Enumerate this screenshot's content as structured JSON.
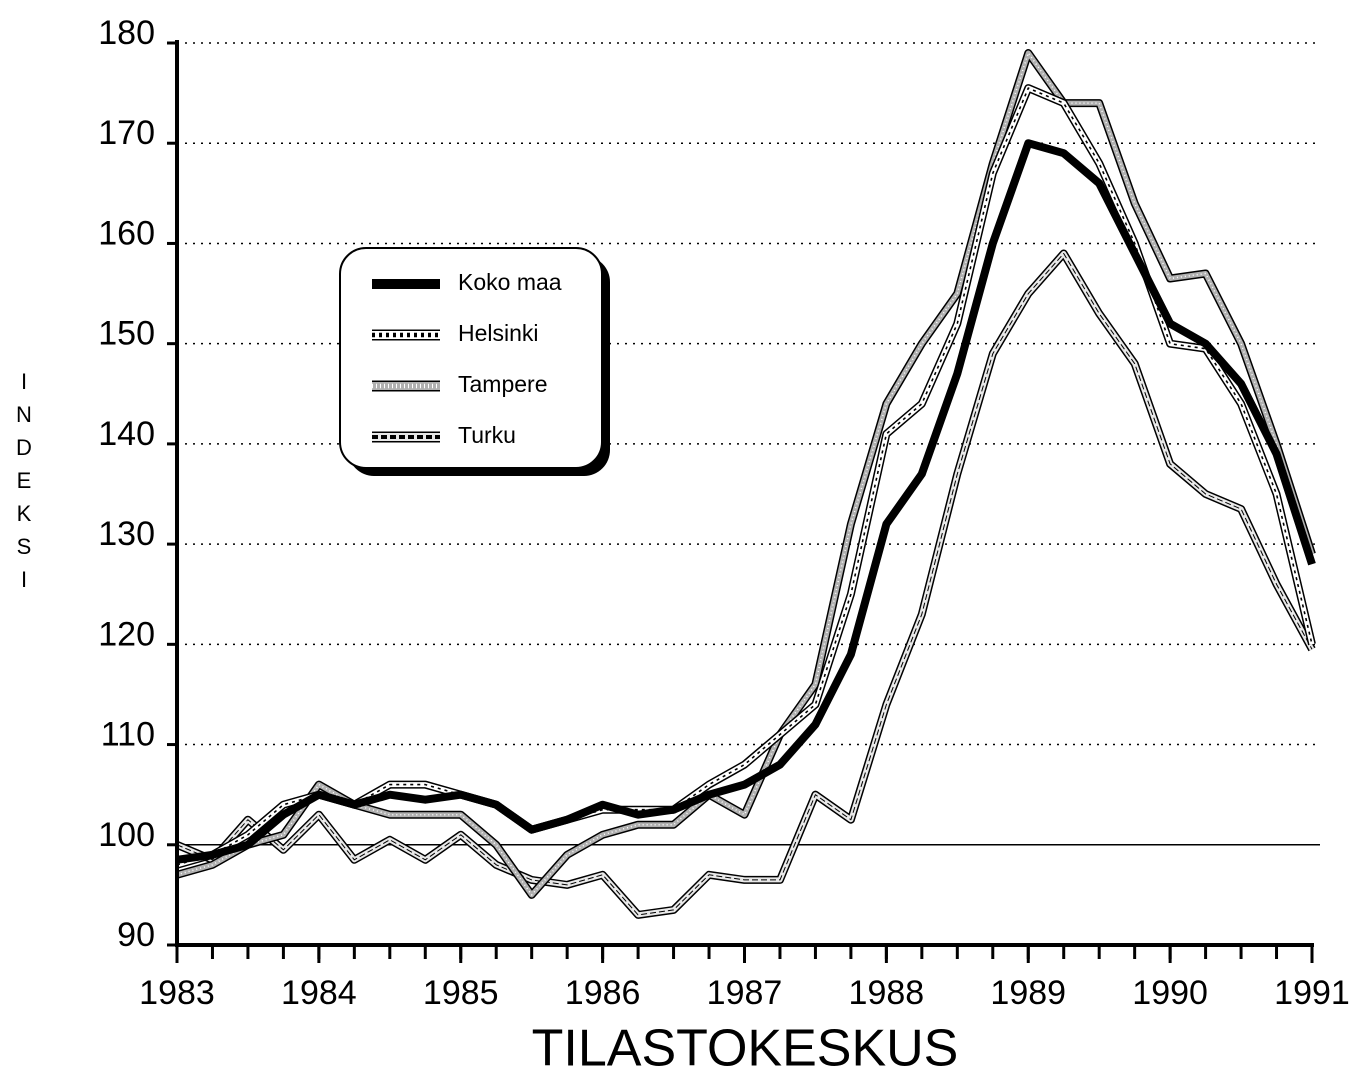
{
  "chart_data": {
    "type": "line",
    "y_label": "INDEKSI",
    "footer": "TILASTOKESKUS",
    "x": [
      1983,
      1983.25,
      1983.5,
      1983.75,
      1984,
      1984.25,
      1984.5,
      1984.75,
      1985,
      1985.25,
      1985.5,
      1985.75,
      1986,
      1986.25,
      1986.5,
      1986.75,
      1987,
      1987.25,
      1987.5,
      1987.75,
      1988,
      1988.25,
      1988.5,
      1988.75,
      1989,
      1989.25,
      1989.5,
      1989.75,
      1990,
      1990.25,
      1990.5,
      1990.75,
      1991
    ],
    "series": [
      {
        "name": "Koko maa",
        "color": "#000000",
        "values": [
          98.5,
          99,
          100,
          103,
          105,
          104,
          105,
          104.5,
          105,
          104,
          101.5,
          102.5,
          104,
          103,
          103.5,
          105,
          106,
          108,
          112,
          119,
          132,
          137,
          147,
          160,
          170,
          169,
          166,
          159,
          152,
          150,
          146,
          139,
          128
        ]
      },
      {
        "name": "Helsinki",
        "color": "#ffffff",
        "values": [
          98,
          99,
          101,
          104,
          105,
          104,
          106,
          106,
          105,
          104,
          101.5,
          102.5,
          103.5,
          103.5,
          103.5,
          106,
          108,
          111,
          114,
          125,
          141,
          144,
          152,
          167,
          175.5,
          174,
          168,
          160,
          150,
          149.5,
          144,
          135,
          120
        ]
      },
      {
        "name": "Tampere",
        "color": "#b0b0b0",
        "values": [
          97,
          98,
          100,
          101,
          106,
          104,
          103,
          103,
          103,
          100,
          95,
          99,
          101,
          102,
          102,
          105,
          103,
          111,
          116,
          132,
          144,
          150,
          155,
          168,
          179,
          174,
          174,
          164,
          156.5,
          157,
          150,
          140,
          129
        ]
      },
      {
        "name": "Turku",
        "color": "#e8e8e8",
        "values": [
          100,
          98.5,
          102.5,
          99.5,
          103,
          98.5,
          100.5,
          98.5,
          101,
          98,
          96.5,
          96,
          97,
          93,
          93.5,
          97,
          96.5,
          96.5,
          105,
          102.5,
          114,
          123,
          137,
          149,
          155,
          159,
          153,
          148,
          138,
          135,
          133.5,
          126,
          119.5
        ]
      }
    ],
    "xlim": [
      1983,
      1991
    ],
    "xticks": [
      1983,
      1984,
      1985,
      1986,
      1987,
      1988,
      1989,
      1990,
      1991
    ],
    "ylim": [
      90,
      180
    ],
    "yticks": [
      90,
      100,
      110,
      120,
      130,
      140,
      150,
      160,
      170,
      180
    ],
    "grid": true
  }
}
